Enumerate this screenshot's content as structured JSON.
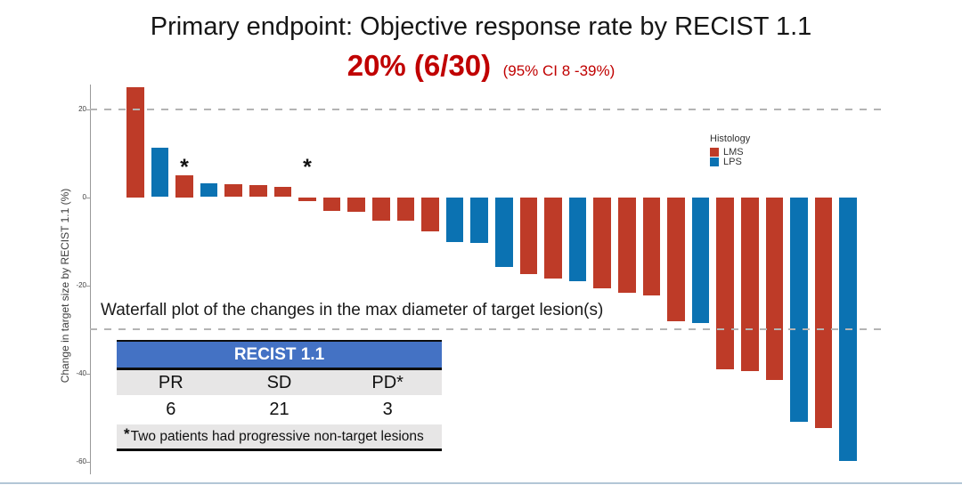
{
  "slide": {
    "title": "Primary endpoint: Objective response rate by RECIST 1.1",
    "subtitle_main": "20% (6/30)",
    "subtitle_ci": "(95% CI 8 -39%)"
  },
  "caption": "Waterfall plot of the changes in the max diameter of target lesion(s)",
  "chart_data": {
    "type": "bar",
    "title": "Waterfall plot of the changes in the max diameter of target lesion(s)",
    "xlabel": "",
    "ylabel": "Change in target size by RECIST 1.1 (%)",
    "yticks": [
      20,
      0,
      -20,
      -40,
      -60
    ],
    "ylim": [
      -64,
      27
    ],
    "grid": false,
    "reference_lines": [
      20,
      -30
    ],
    "legend": {
      "title": "Histology",
      "position": "right",
      "entries": [
        {
          "label": "LMS",
          "color": "#be3b28"
        },
        {
          "label": "LPS",
          "color": "#0b72b2"
        }
      ]
    },
    "bars": [
      {
        "value": 25.0,
        "histology": "LMS"
      },
      {
        "value": 11.2,
        "histology": "LPS"
      },
      {
        "value": 5.0,
        "histology": "LMS",
        "annotation": "*"
      },
      {
        "value": 3.2,
        "histology": "LPS"
      },
      {
        "value": 3.0,
        "histology": "LMS"
      },
      {
        "value": 2.7,
        "histology": "LMS"
      },
      {
        "value": 2.4,
        "histology": "LMS"
      },
      {
        "value": -1.0,
        "histology": "LMS",
        "annotation": "*"
      },
      {
        "value": -3.2,
        "histology": "LMS"
      },
      {
        "value": -3.3,
        "histology": "LMS"
      },
      {
        "value": -5.3,
        "histology": "LMS"
      },
      {
        "value": -5.4,
        "histology": "LMS"
      },
      {
        "value": -7.7,
        "histology": "LMS"
      },
      {
        "value": -10.3,
        "histology": "LPS"
      },
      {
        "value": -10.4,
        "histology": "LPS"
      },
      {
        "value": -15.8,
        "histology": "LPS"
      },
      {
        "value": -17.5,
        "histology": "LMS"
      },
      {
        "value": -18.5,
        "histology": "LMS"
      },
      {
        "value": -19.0,
        "histology": "LPS"
      },
      {
        "value": -20.8,
        "histology": "LMS"
      },
      {
        "value": -21.7,
        "histology": "LMS"
      },
      {
        "value": -22.3,
        "histology": "LMS"
      },
      {
        "value": -28.2,
        "histology": "LMS"
      },
      {
        "value": -28.5,
        "histology": "LPS"
      },
      {
        "value": -39.0,
        "histology": "LMS"
      },
      {
        "value": -39.5,
        "histology": "LMS"
      },
      {
        "value": -41.5,
        "histology": "LMS"
      },
      {
        "value": -51.0,
        "histology": "LPS"
      },
      {
        "value": -52.5,
        "histology": "LMS"
      },
      {
        "value": -59.8,
        "histology": "LPS"
      }
    ]
  },
  "table": {
    "header": "RECIST 1.1",
    "columns": [
      "PR",
      "SD",
      "PD*"
    ],
    "values": [
      "6",
      "21",
      "3"
    ],
    "footnote_star": "*",
    "footnote": "Two patients had progressive non-target lesions"
  },
  "colors": {
    "lms_bar": "#be3b28",
    "lps_bar": "#0b72b2",
    "subtitle_red": "#c00000",
    "table_header_blue": "#4472c4",
    "table_row_gray": "#e7e6e6",
    "dashed_line": "#b4b4b4",
    "slide_border": "#b3c6d6"
  }
}
